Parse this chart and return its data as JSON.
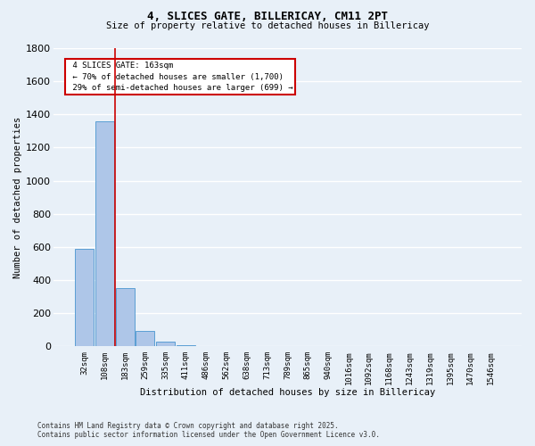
{
  "title_line1": "4, SLICES GATE, BILLERICAY, CM11 2PT",
  "title_line2": "Size of property relative to detached houses in Billericay",
  "xlabel": "Distribution of detached houses by size in Billericay",
  "ylabel": "Number of detached properties",
  "categories": [
    "32sqm",
    "108sqm",
    "183sqm",
    "259sqm",
    "335sqm",
    "411sqm",
    "486sqm",
    "562sqm",
    "638sqm",
    "713sqm",
    "789sqm",
    "865sqm",
    "940sqm",
    "1016sqm",
    "1092sqm",
    "1168sqm",
    "1243sqm",
    "1319sqm",
    "1395sqm",
    "1470sqm",
    "1546sqm"
  ],
  "values": [
    590,
    1360,
    350,
    95,
    30,
    8,
    3,
    1,
    1,
    0,
    0,
    0,
    0,
    0,
    0,
    0,
    0,
    0,
    0,
    0,
    0
  ],
  "bar_color": "#aec6e8",
  "bar_edge_color": "#5a9fd4",
  "background_color": "#e8f0f8",
  "grid_color": "#ffffff",
  "ylim": [
    0,
    1800
  ],
  "yticks": [
    0,
    200,
    400,
    600,
    800,
    1000,
    1200,
    1400,
    1600,
    1800
  ],
  "property_label": "4 SLICES GATE: 163sqm",
  "pct_smaller": 70,
  "n_smaller": 1700,
  "pct_larger_semi": 29,
  "n_larger_semi": 699,
  "vline_x": 1.5,
  "annotation_box_color": "#ffffff",
  "annotation_border_color": "#cc0000",
  "vline_color": "#cc0000",
  "footer_line1": "Contains HM Land Registry data © Crown copyright and database right 2025.",
  "footer_line2": "Contains public sector information licensed under the Open Government Licence v3.0."
}
